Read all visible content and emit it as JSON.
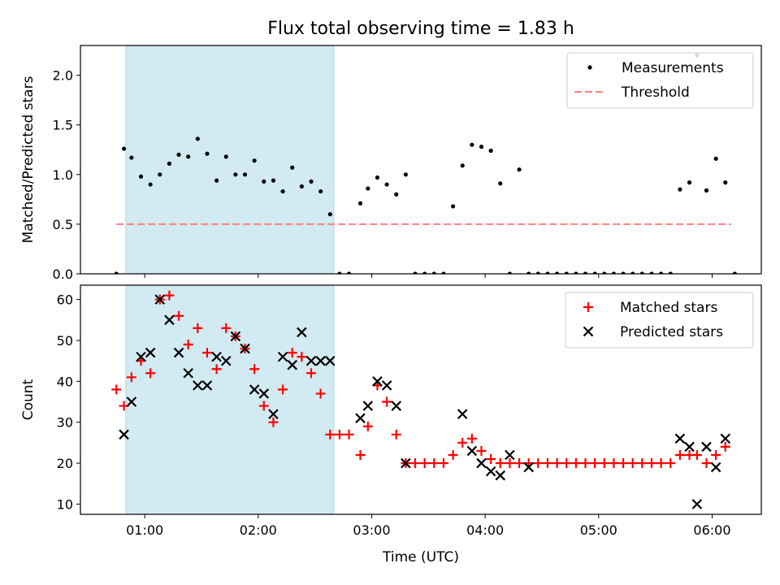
{
  "title": "Flux total observing time = 1.83 h",
  "colors": {
    "measurements": "#000000",
    "threshold": "#ff7f7f",
    "matched": "#ff0000",
    "predicted": "#000000",
    "span": "#add8e6"
  },
  "chart_data": [
    {
      "type": "scatter",
      "title": "Flux total observing time = 1.83 h",
      "xlabel": "",
      "ylabel": "Matched/Predicted stars",
      "x_unit": "minutes after 00:00 UTC",
      "xlim": [
        26,
        386
      ],
      "ylim": [
        0,
        2.3
      ],
      "yticks": [
        0.0,
        0.5,
        1.0,
        1.5,
        2.0
      ],
      "ytick_labels": [
        "0.0",
        "0.5",
        "1.0",
        "1.5",
        "2.0"
      ],
      "xticks": [
        60,
        120,
        180,
        240,
        300,
        360
      ],
      "xtick_labels": [
        "",
        "",
        "",
        "",
        "",
        ""
      ],
      "shaded_span": [
        50,
        160
      ],
      "legend_position": "top-right",
      "legend": [
        "Measurements",
        "Threshold"
      ],
      "threshold": {
        "name": "Threshold",
        "value": 0.5,
        "x_range": [
          45,
          370
        ],
        "style": "dashed"
      },
      "series": [
        {
          "name": "Measurements",
          "marker": "dot",
          "x": [
            45,
            49,
            53,
            58,
            63,
            68,
            73,
            78,
            83,
            88,
            93,
            98,
            103,
            108,
            113,
            118,
            123,
            128,
            133,
            138,
            143,
            148,
            153,
            158,
            163,
            168,
            174,
            178,
            183,
            188,
            193,
            198,
            203,
            208,
            213,
            218,
            223,
            228,
            233,
            238,
            243,
            248,
            253,
            258,
            263,
            268,
            273,
            278,
            283,
            288,
            293,
            298,
            303,
            308,
            313,
            318,
            323,
            328,
            333,
            338,
            343,
            348,
            352,
            357,
            362,
            367,
            372
          ],
          "y": [
            0.0,
            1.26,
            1.17,
            0.98,
            0.9,
            1.0,
            1.11,
            1.2,
            1.18,
            1.36,
            1.21,
            0.94,
            1.18,
            1.0,
            1.0,
            1.14,
            0.93,
            0.94,
            0.83,
            1.07,
            0.88,
            0.93,
            0.83,
            0.6,
            0.0,
            0.0,
            0.71,
            0.86,
            0.97,
            0.9,
            0.8,
            1.0,
            0.0,
            0.0,
            0.0,
            0.0,
            0.68,
            1.09,
            1.3,
            1.28,
            1.24,
            0.91,
            0.0,
            1.05,
            0.0,
            0.0,
            0.0,
            0.0,
            0.0,
            0.0,
            0.0,
            0.0,
            0.0,
            0.0,
            0.0,
            0.0,
            0.0,
            0.0,
            0.0,
            0.0,
            0.85,
            0.92,
            2.2,
            0.84,
            1.16,
            0.92,
            0.0
          ]
        }
      ]
    },
    {
      "type": "scatter",
      "xlabel": "Time (UTC)",
      "ylabel": "Count",
      "x_unit": "minutes after 00:00 UTC",
      "xlim": [
        26,
        386
      ],
      "ylim": [
        7.5,
        63.5
      ],
      "yticks": [
        10,
        20,
        30,
        40,
        50,
        60
      ],
      "ytick_labels": [
        "10",
        "20",
        "30",
        "40",
        "50",
        "60"
      ],
      "xticks": [
        60,
        120,
        180,
        240,
        300,
        360
      ],
      "xtick_labels": [
        "01:00",
        "02:00",
        "03:00",
        "04:00",
        "05:00",
        "06:00"
      ],
      "shaded_span": [
        50,
        160
      ],
      "legend_position": "top-right",
      "legend": [
        "Matched stars",
        "Predicted stars"
      ],
      "series": [
        {
          "name": "Matched stars",
          "marker": "plus",
          "x": [
            45,
            49,
            53,
            58,
            63,
            68,
            73,
            78,
            83,
            88,
            93,
            98,
            103,
            108,
            113,
            118,
            123,
            128,
            133,
            138,
            143,
            148,
            153,
            158,
            163,
            168,
            174,
            178,
            183,
            188,
            193,
            198,
            203,
            208,
            213,
            218,
            223,
            228,
            233,
            238,
            243,
            248,
            253,
            258,
            263,
            268,
            273,
            278,
            283,
            288,
            293,
            298,
            303,
            308,
            313,
            318,
            323,
            328,
            333,
            338,
            343,
            348,
            352,
            357,
            362,
            367
          ],
          "y": [
            38,
            34,
            41,
            45,
            42,
            60,
            61,
            56,
            49,
            53,
            47,
            43,
            53,
            51,
            48,
            43,
            34,
            30,
            38,
            47,
            46,
            42,
            37,
            27,
            27,
            27,
            22,
            29,
            39,
            35,
            27,
            20,
            20,
            20,
            20,
            20,
            22,
            25,
            26,
            23,
            21,
            20,
            20,
            20,
            20,
            20,
            20,
            20,
            20,
            20,
            20,
            20,
            20,
            20,
            20,
            20,
            20,
            20,
            20,
            20,
            22,
            22,
            22,
            20,
            22,
            24
          ]
        },
        {
          "name": "Predicted stars",
          "marker": "x",
          "x": [
            49,
            53,
            58,
            63,
            68,
            73,
            78,
            83,
            88,
            93,
            98,
            103,
            108,
            113,
            118,
            123,
            128,
            133,
            138,
            143,
            148,
            153,
            158,
            174,
            178,
            183,
            188,
            193,
            198,
            228,
            233,
            238,
            243,
            248,
            253,
            263,
            343,
            348,
            352,
            357,
            362,
            367
          ],
          "y": [
            27,
            35,
            46,
            47,
            60,
            55,
            47,
            42,
            39,
            39,
            46,
            45,
            51,
            48,
            38,
            37,
            32,
            46,
            44,
            52,
            45,
            45,
            45,
            31,
            34,
            40,
            39,
            34,
            20,
            32,
            23,
            20,
            18,
            17,
            22,
            19,
            26,
            24,
            10,
            24,
            19,
            26
          ]
        }
      ]
    }
  ]
}
